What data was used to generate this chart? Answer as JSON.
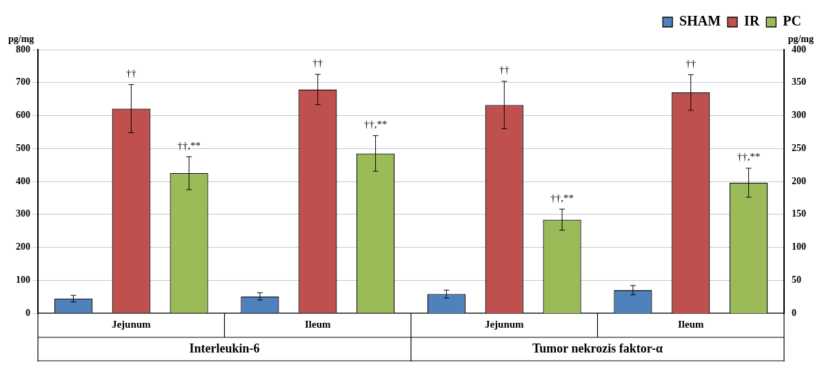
{
  "chart_data": {
    "type": "bar",
    "ylabel": "pg/mg",
    "y2label": "pg/mg",
    "categories": [
      "Jejunum",
      "Ileum",
      "Jejunum",
      "Ileum"
    ],
    "annotations": [
      "Interleukin-6",
      "Tumor nekrozis faktor-α"
    ],
    "series": [
      {
        "name": "SHAM",
        "color": "#4f81bd",
        "values": [
          44,
          51,
          null,
          null
        ],
        "errors": [
          10,
          11,
          null,
          null
        ],
        "value_labels": [
          null,
          null,
          null,
          null
        ]
      },
      {
        "name": "IR",
        "color": "#c0504d",
        "values": [
          621,
          679,
          null,
          null
        ],
        "errors": [
          73,
          46,
          null,
          null
        ],
        "value_labels": [
          "††",
          "††",
          null,
          null
        ]
      },
      {
        "name": "PC",
        "color": "#9bbb59",
        "values": [
          425,
          485,
          null,
          null
        ],
        "errors": [
          50,
          54,
          null,
          null
        ],
        "value_labels": [
          "††,**",
          "††,**",
          null,
          null
        ]
      },
      {
        "color": "#4f81bd",
        "axis": "y2",
        "values": [
          null,
          null,
          29,
          35
        ],
        "errors": [
          null,
          null,
          6,
          7
        ],
        "value_labels": [
          null,
          null,
          null,
          null
        ]
      },
      {
        "color": "#c0504d",
        "axis": "y2",
        "values": [
          null,
          null,
          316,
          335
        ],
        "errors": [
          null,
          null,
          36,
          27
        ],
        "value_labels": [
          null,
          null,
          "††",
          "††"
        ]
      },
      {
        "color": "#9bbb59",
        "axis": "y2",
        "values": [
          null,
          null,
          142,
          198
        ],
        "errors": [
          null,
          null,
          16,
          22
        ],
        "value_labels": [
          null,
          null,
          "††,**",
          "††,**"
        ]
      }
    ],
    "ylim": [
      0,
      800
    ],
    "yticks": [
      0,
      100,
      200,
      300,
      400,
      500,
      600,
      700,
      800
    ],
    "y2lim": [
      0,
      400
    ],
    "y2ticks": [
      0,
      50,
      100,
      150,
      200,
      250,
      300,
      350,
      400
    ],
    "grid": "y",
    "legend": "top right"
  }
}
